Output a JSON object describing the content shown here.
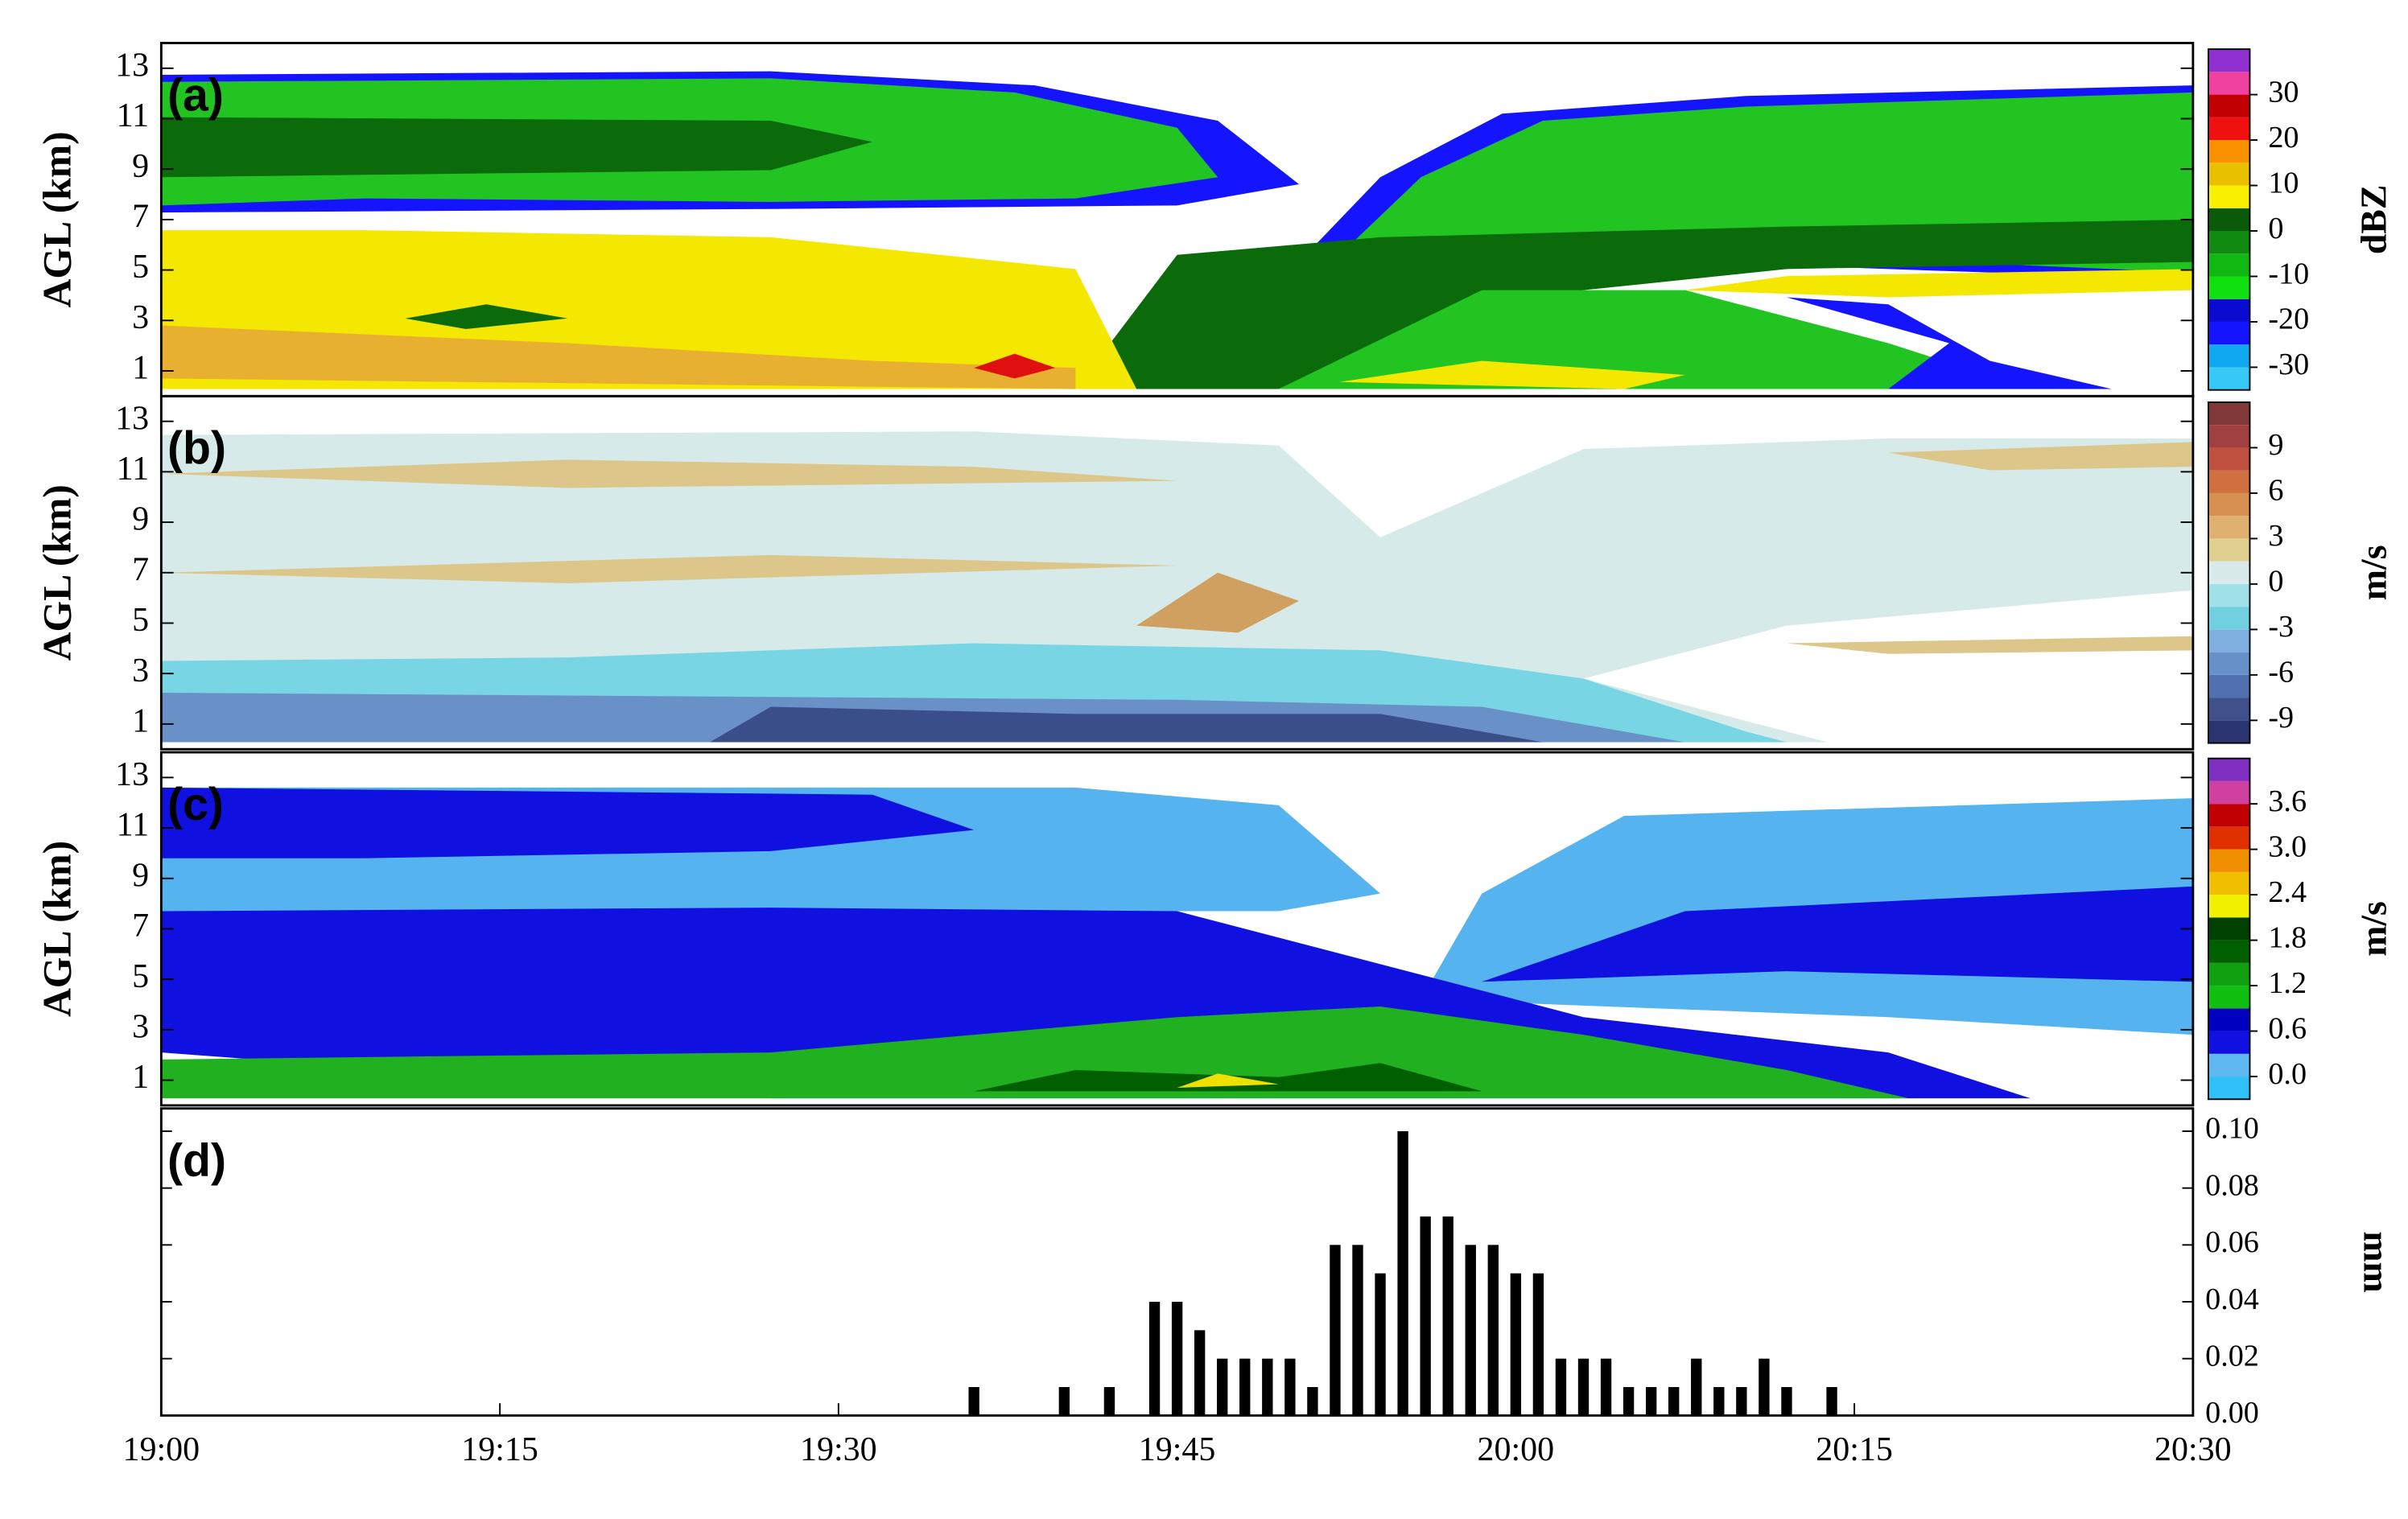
{
  "chart_data": [
    {
      "type": "heatmap",
      "label": "(a)",
      "ylabel": "AGL (km)",
      "ylim": [
        0,
        14
      ],
      "yticks": [
        1,
        3,
        5,
        7,
        9,
        11,
        13
      ],
      "colorbar": {
        "label": "dBZ",
        "lim": [
          -35,
          40
        ],
        "ticks": [
          -30,
          -20,
          -10,
          0,
          10,
          20,
          30
        ],
        "colors": [
          "#38c8f8",
          "#10a8f0",
          "#1414ff",
          "#0a0ad0",
          "#10e010",
          "#12b812",
          "#108a10",
          "#0a5a0a",
          "#f8f000",
          "#e8c000",
          "#f89000",
          "#f01010",
          "#c00000",
          "#f040a0",
          "#9030d0"
        ]
      }
    },
    {
      "type": "heatmap",
      "label": "(b)",
      "ylabel": "AGL (km)",
      "ylim": [
        0,
        14
      ],
      "yticks": [
        1,
        3,
        5,
        7,
        9,
        11,
        13
      ],
      "colorbar": {
        "label": "m/s",
        "lim": [
          -10.5,
          12
        ],
        "ticks": [
          -9,
          -6,
          -3,
          0,
          3,
          6,
          9
        ],
        "colors": [
          "#2a3570",
          "#40508a",
          "#5070b0",
          "#6890c8",
          "#80b0e0",
          "#70d0e0",
          "#a0e0e8",
          "#d8eaea",
          "#e0d090",
          "#e0b070",
          "#d89050",
          "#d07040",
          "#c05040",
          "#a04040",
          "#803838"
        ]
      }
    },
    {
      "type": "heatmap",
      "label": "(c)",
      "ylabel": "AGL (km)",
      "ylim": [
        0,
        14
      ],
      "yticks": [
        1,
        3,
        5,
        7,
        9,
        11,
        13
      ],
      "colorbar": {
        "label": "m/s",
        "lim": [
          -0.3,
          4.2
        ],
        "ticks": [
          {
            "value": 0,
            "label": "0.0"
          },
          0.6,
          1.2,
          1.8,
          2.4,
          {
            "value": 3,
            "label": "3.0"
          },
          3.6
        ],
        "colors": [
          "#30c0f8",
          "#60b8f0",
          "#1010e0",
          "#0000c0",
          "#10c010",
          "#10a010",
          "#006000",
          "#004000",
          "#f0f000",
          "#f0c000",
          "#f09000",
          "#e03000",
          "#c00000",
          "#d040a0",
          "#8030c0"
        ]
      }
    },
    {
      "type": "bar",
      "label": "(d)",
      "ylabel": "mm",
      "color": "#000000",
      "x": [
        "19:36",
        "19:40",
        "19:42",
        "19:44",
        "19:45",
        "19:46",
        "19:47",
        "19:48",
        "19:49",
        "19:50",
        "19:51",
        "19:52",
        "19:53",
        "19:54",
        "19:55",
        "19:56",
        "19:57",
        "19:58",
        "19:59",
        "20:00",
        "20:01",
        "20:02",
        "20:03",
        "20:04",
        "20:05",
        "20:06",
        "20:07",
        "20:08",
        "20:09",
        "20:10",
        "20:11",
        "20:12",
        "20:14"
      ],
      "values": [
        0.01,
        0.01,
        0.01,
        0.04,
        0.04,
        0.03,
        0.02,
        0.02,
        0.02,
        0.02,
        0.01,
        0.06,
        0.06,
        0.05,
        0.1,
        0.07,
        0.07,
        0.06,
        0.06,
        0.05,
        0.05,
        0.02,
        0.02,
        0.02,
        0.01,
        0.01,
        0.01,
        0.02,
        0.01,
        0.01,
        0.02,
        0.01,
        0.01
      ],
      "xlim": [
        "19:00",
        "20:30"
      ],
      "xticks": [
        "19:00",
        "19:15",
        "19:30",
        "19:45",
        "20:00",
        "20:15",
        "20:30"
      ],
      "ylim": [
        0,
        0.108
      ],
      "yticks": [
        {
          "value": 0,
          "label": "0.00"
        },
        {
          "value": 0.02,
          "label": "0.02"
        },
        {
          "value": 0.04,
          "label": "0.04"
        },
        {
          "value": 0.06,
          "label": "0.06"
        },
        {
          "value": 0.08,
          "label": "0.08"
        },
        {
          "value": 0.1,
          "label": "0.10"
        }
      ]
    }
  ]
}
